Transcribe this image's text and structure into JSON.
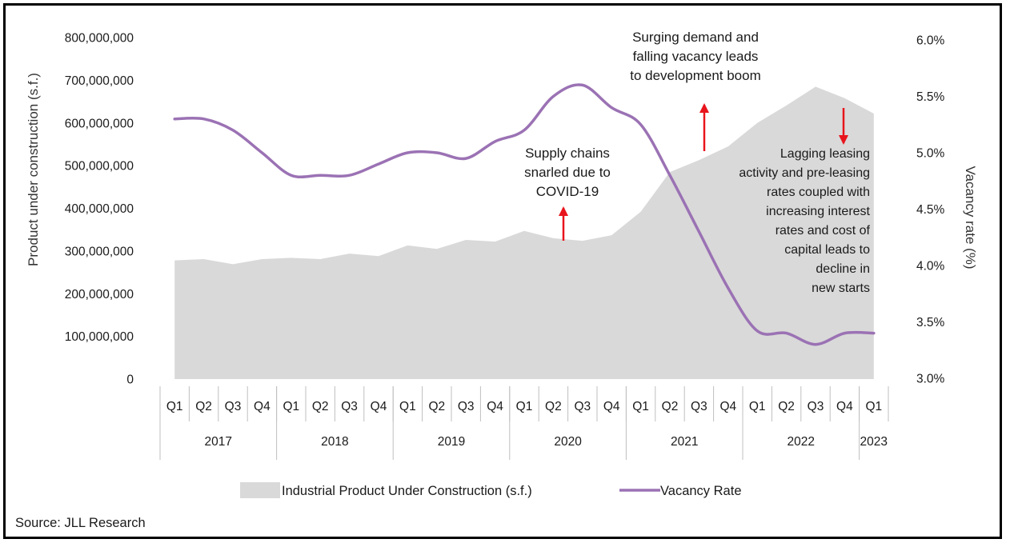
{
  "chart_data": {
    "type": "area+line",
    "categories": [
      "Q1",
      "Q2",
      "Q3",
      "Q4",
      "Q1",
      "Q2",
      "Q3",
      "Q4",
      "Q1",
      "Q2",
      "Q3",
      "Q4",
      "Q1",
      "Q2",
      "Q3",
      "Q4",
      "Q1",
      "Q2",
      "Q3",
      "Q4",
      "Q1",
      "Q2",
      "Q3",
      "Q4",
      "Q1"
    ],
    "years": [
      {
        "label": "2017",
        "quarters": 4
      },
      {
        "label": "2018",
        "quarters": 4
      },
      {
        "label": "2019",
        "quarters": 4
      },
      {
        "label": "2020",
        "quarters": 4
      },
      {
        "label": "2021",
        "quarters": 4
      },
      {
        "label": "2022",
        "quarters": 4
      },
      {
        "label": "2023",
        "quarters": 1
      }
    ],
    "series": [
      {
        "name": "Industrial Product Under Construction (s.f.)",
        "type": "area",
        "axis": "left",
        "color": "#d9d9d9",
        "values": [
          278000000,
          281000000,
          269000000,
          281000000,
          284000000,
          281000000,
          294000000,
          288000000,
          313000000,
          305000000,
          326000000,
          322000000,
          347000000,
          330000000,
          324000000,
          337000000,
          392000000,
          485000000,
          513000000,
          545000000,
          600000000,
          641000000,
          685000000,
          658000000,
          622000000
        ]
      },
      {
        "name": "Vacancy Rate",
        "type": "line",
        "axis": "right",
        "color": "#9b72b4",
        "values": [
          5.3,
          5.3,
          5.2,
          5.0,
          4.8,
          4.8,
          4.8,
          4.9,
          5.0,
          5.0,
          4.95,
          5.1,
          5.2,
          5.5,
          5.6,
          5.4,
          5.25,
          4.8,
          4.3,
          3.8,
          3.42,
          3.4,
          3.3,
          3.4,
          3.4
        ]
      }
    ],
    "y_left": {
      "label": "Product under construction (s.f.)",
      "lim": [
        0,
        800000000
      ],
      "ticks": [
        "800,000,000",
        "700,000,000",
        "600,000,000",
        "500,000,000",
        "400,000,000",
        "300,000,000",
        "200,000,000",
        "100,000,000",
        "0"
      ]
    },
    "y_right": {
      "label": "Vacancy rate (%)",
      "lim": [
        3.0,
        6.0
      ],
      "ticks": [
        "6.0%",
        "5.5%",
        "5.0%",
        "4.5%",
        "4.0%",
        "3.5%",
        "3.0%"
      ]
    },
    "annotations": [
      {
        "id": "covid",
        "lines": [
          "Supply chains",
          "snarled due to",
          "COVID-19"
        ],
        "arrow": "up",
        "quarter_index": 13
      },
      {
        "id": "boom",
        "lines": [
          "Surging demand and",
          "falling vacancy leads",
          "to development boom"
        ],
        "arrow": "up",
        "quarter_index": 18
      },
      {
        "id": "lagging",
        "lines": [
          "Lagging leasing",
          "activity and pre-leasing",
          "rates coupled with",
          "increasing interest",
          "rates and cost of",
          "capital leads to",
          "decline in",
          "new starts"
        ],
        "arrow": "down",
        "quarter_index": 23
      }
    ],
    "legend": {
      "placement": "bottom-center",
      "items": [
        {
          "label": "Industrial Product Under Construction (s.f.)",
          "kind": "area",
          "color": "#d9d9d9"
        },
        {
          "label": "Vacancy Rate",
          "kind": "line",
          "color": "#9b72b4"
        }
      ]
    },
    "arrow_color": "#e8141c"
  },
  "source": "Source: JLL Research"
}
